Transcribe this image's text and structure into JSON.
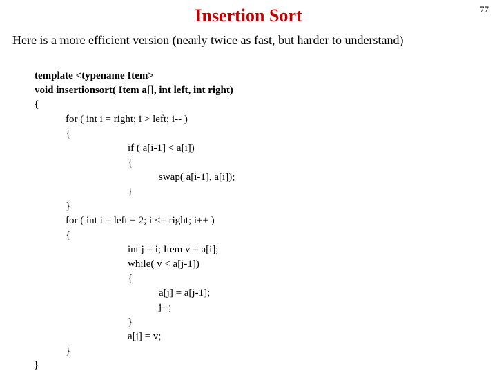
{
  "page_number": "77",
  "title": "Insertion Sort",
  "title_color": "#c00000",
  "description": "Here is a more efficient version (nearly twice as fast, but harder to understand)",
  "code": {
    "l01": "template <typename Item>",
    "l02": "void insertionsort( Item a[], int left, int right)",
    "l03": "{",
    "l04": "            for ( int i = right; i > left; i-- )",
    "l05": "            {",
    "l06": "                                    if ( a[i-1] < a[i])",
    "l07": "                                    {",
    "l08": "                                                swap( a[i-1], a[i]);",
    "l09": "                                    }",
    "l10": "            }",
    "l11": "            for ( int i = left + 2; i <= right; i++ )",
    "l12": "            {",
    "l13": "                                    int j = i; Item v = a[i];",
    "l14": "                                    while( v < a[j-1])",
    "l15": "                                    {",
    "l16": "                                                a[j] = a[j-1];",
    "l17": "                                                j--;",
    "l18": "                                    }",
    "l19": "                                    a[j] = v;",
    "l20": "            }",
    "l21": "}"
  }
}
